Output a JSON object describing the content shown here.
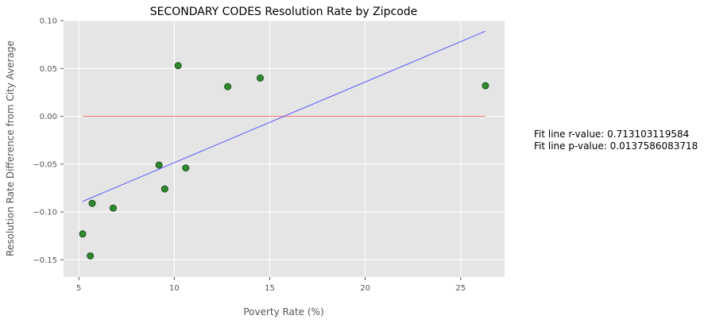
{
  "chart_data": {
    "type": "scatter",
    "title": "SECONDARY CODES Resolution Rate by Zipcode",
    "xlabel": "Poverty Rate (%)",
    "ylabel": "Resolution Rate Difference from City Average",
    "xlim": [
      4.2,
      27.3
    ],
    "ylim": [
      -0.168,
      0.1
    ],
    "xticks": [
      5,
      10,
      15,
      20,
      25
    ],
    "xtick_labels": [
      "5",
      "10",
      "15",
      "20",
      "25"
    ],
    "yticks": [
      -0.15,
      -0.1,
      -0.05,
      0.0,
      0.05,
      0.1
    ],
    "ytick_labels": [
      "−0.15",
      "−0.10",
      "−0.05",
      "0.00",
      "0.05",
      "0.10"
    ],
    "grid": true,
    "points": [
      {
        "x": 5.2,
        "y": -0.123
      },
      {
        "x": 5.6,
        "y": -0.146
      },
      {
        "x": 5.7,
        "y": -0.091
      },
      {
        "x": 6.8,
        "y": -0.096
      },
      {
        "x": 9.2,
        "y": -0.051
      },
      {
        "x": 9.5,
        "y": -0.076
      },
      {
        "x": 10.2,
        "y": 0.053
      },
      {
        "x": 10.6,
        "y": -0.054
      },
      {
        "x": 12.8,
        "y": 0.031
      },
      {
        "x": 14.5,
        "y": 0.04
      },
      {
        "x": 26.3,
        "y": 0.032
      }
    ],
    "fit_line": {
      "x": [
        5.2,
        26.3
      ],
      "y": [
        -0.089,
        0.089
      ]
    },
    "reference_line": {
      "x": [
        5.2,
        26.3
      ],
      "y": [
        0.0,
        0.0
      ]
    },
    "annotations": [
      "Fit line r-value: 0.713103119584",
      "Fit line p-value: 0.0137586083718"
    ],
    "colors": {
      "background": "#e5e5e5",
      "grid": "#ffffff",
      "point_fill": "#2e8b2e",
      "point_edge": "#1f4f1f",
      "fit_line": "#4444ff",
      "reference_line": "#ff6666"
    }
  }
}
